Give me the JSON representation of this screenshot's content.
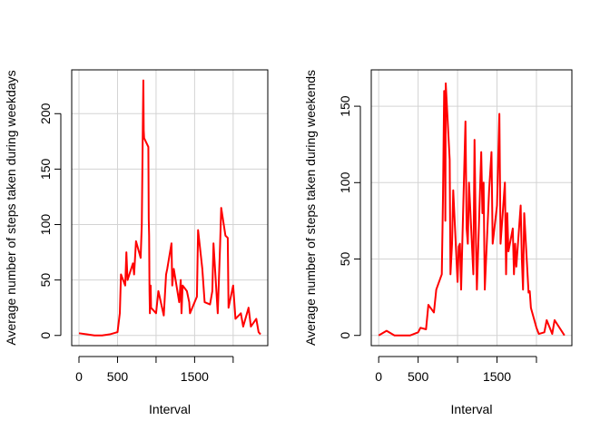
{
  "chart_data": [
    {
      "type": "line",
      "x_label": "Interval",
      "y_label": "Average number of steps taken during weekdays",
      "color": "#ff0000",
      "grid": true,
      "x": [
        0,
        100,
        200,
        300,
        400,
        500,
        530,
        545,
        600,
        615,
        630,
        700,
        715,
        740,
        800,
        815,
        830,
        835,
        840,
        845,
        900,
        905,
        910,
        915,
        920,
        930,
        935,
        1000,
        1030,
        1100,
        1130,
        1145,
        1200,
        1210,
        1230,
        1300,
        1320,
        1330,
        1345,
        1400,
        1430,
        1440,
        1530,
        1545,
        1600,
        1630,
        1700,
        1730,
        1745,
        1800,
        1830,
        1845,
        1900,
        1930,
        1940,
        2000,
        2030,
        2100,
        2130,
        2200,
        2230,
        2300,
        2330,
        2355
      ],
      "values": [
        2,
        1,
        0,
        0,
        1,
        3,
        20,
        55,
        45,
        75,
        50,
        65,
        55,
        85,
        70,
        100,
        200,
        230,
        185,
        178,
        170,
        105,
        90,
        40,
        20,
        45,
        25,
        20,
        40,
        18,
        55,
        60,
        83,
        45,
        60,
        30,
        50,
        20,
        45,
        40,
        30,
        20,
        35,
        95,
        60,
        30,
        28,
        40,
        83,
        20,
        80,
        115,
        90,
        88,
        25,
        45,
        15,
        20,
        8,
        25,
        8,
        15,
        3,
        1
      ],
      "xlim": [
        -94.2,
        2449.2
      ],
      "xticks": [
        0,
        500,
        1000,
        1500,
        2000
      ],
      "ylim": [
        -9.2,
        239.5
      ],
      "yticks": [
        0,
        50,
        100,
        150,
        200
      ]
    },
    {
      "type": "line",
      "x_label": "Interval",
      "y_label": "Average number of steps taken during weekends",
      "color": "#ff0000",
      "grid": true,
      "x": [
        0,
        100,
        200,
        300,
        400,
        500,
        530,
        600,
        630,
        700,
        730,
        800,
        815,
        830,
        840,
        845,
        850,
        900,
        910,
        930,
        945,
        1000,
        1015,
        1030,
        1045,
        1100,
        1115,
        1130,
        1145,
        1200,
        1215,
        1230,
        1245,
        1300,
        1315,
        1330,
        1345,
        1400,
        1430,
        1445,
        1500,
        1530,
        1545,
        1600,
        1615,
        1630,
        1645,
        1700,
        1715,
        1730,
        1745,
        1800,
        1815,
        1830,
        1845,
        1900,
        1915,
        1930,
        2000,
        2030,
        2100,
        2130,
        2200,
        2230,
        2355
      ],
      "values": [
        0,
        3,
        0,
        0,
        0,
        2,
        5,
        4,
        20,
        15,
        30,
        40,
        90,
        160,
        130,
        75,
        165,
        115,
        40,
        60,
        95,
        35,
        58,
        60,
        30,
        140,
        70,
        60,
        100,
        40,
        128,
        70,
        30,
        120,
        80,
        100,
        30,
        95,
        120,
        60,
        85,
        145,
        60,
        100,
        40,
        80,
        55,
        70,
        40,
        60,
        45,
        85,
        50,
        30,
        80,
        28,
        29,
        18,
        5,
        1,
        2,
        10,
        1,
        10,
        0
      ],
      "xlim": [
        -94.2,
        2449.2
      ],
      "xticks": [
        0,
        500,
        1000,
        1500,
        2000
      ],
      "ylim": [
        -6.7,
        173.8
      ],
      "yticks": [
        0,
        50,
        100,
        150
      ]
    }
  ]
}
